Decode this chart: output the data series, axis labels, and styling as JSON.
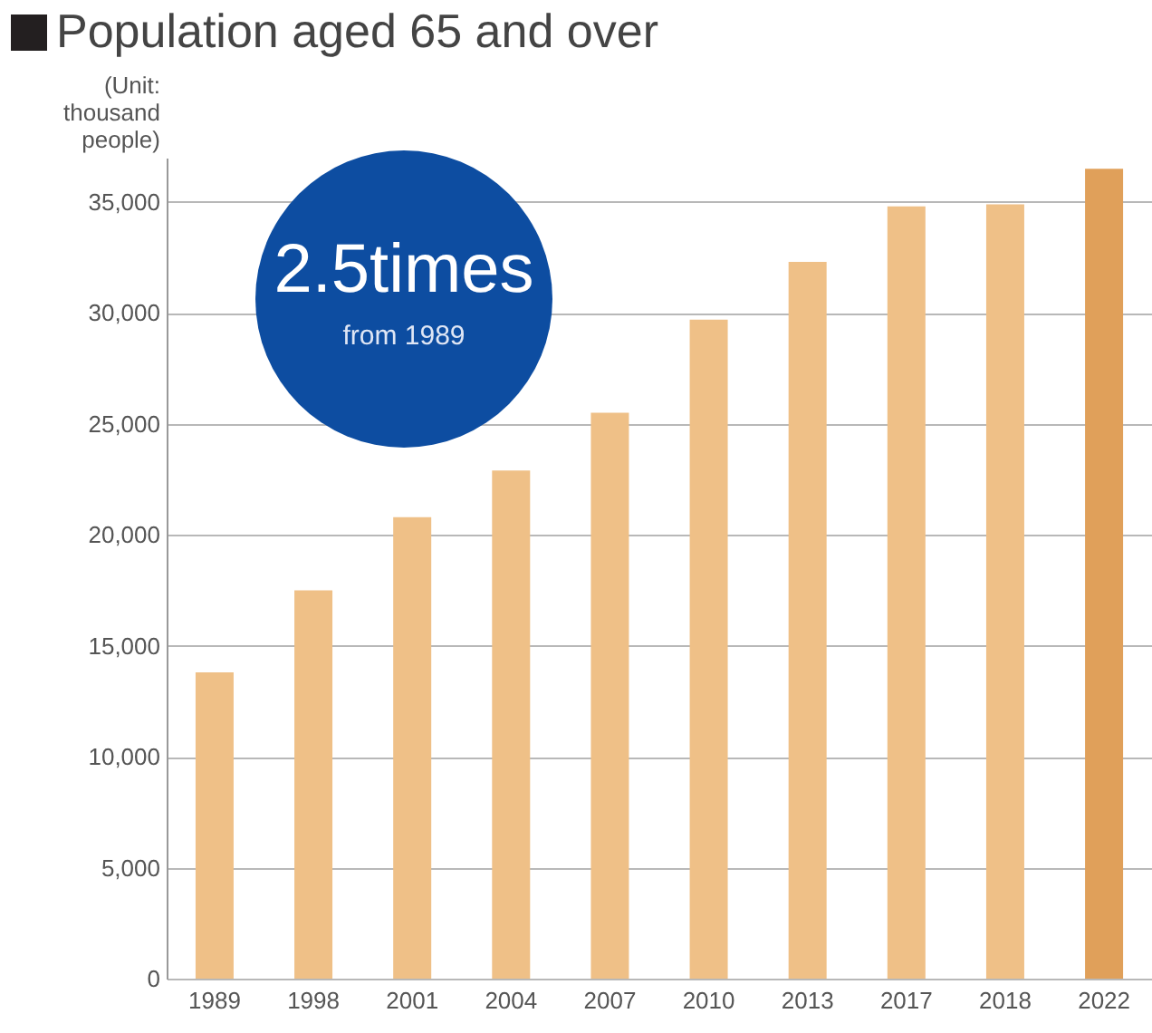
{
  "chart_data": {
    "type": "bar",
    "title": "Population aged 65 and over",
    "ylabel": "(Unit: thousand people)",
    "categories": [
      "1989",
      "1998",
      "2001",
      "2004",
      "2007",
      "2010",
      "2013",
      "2017",
      "2018",
      "2022"
    ],
    "values": [
      13800,
      17500,
      20800,
      22900,
      25500,
      29700,
      32300,
      34800,
      34900,
      36500
    ],
    "colors": [
      "#efc087",
      "#efc087",
      "#efc087",
      "#efc087",
      "#efc087",
      "#efc087",
      "#efc087",
      "#efc087",
      "#efc087",
      "#e0a05a"
    ],
    "ylim": [
      0,
      37000
    ],
    "yticks": [
      0,
      {
        "value": 5000,
        "label": "5,000"
      },
      {
        "value": 10000,
        "label": "10,000"
      },
      {
        "value": 15000,
        "label": "15,000"
      },
      {
        "value": 20000,
        "label": "20,000"
      },
      {
        "value": 25000,
        "label": "25,000"
      },
      {
        "value": 30000,
        "label": "30,000"
      },
      {
        "value": 35000,
        "label": "35,000"
      }
    ],
    "grid": "y",
    "annotations": [
      "2.5times",
      "from 1989"
    ]
  }
}
